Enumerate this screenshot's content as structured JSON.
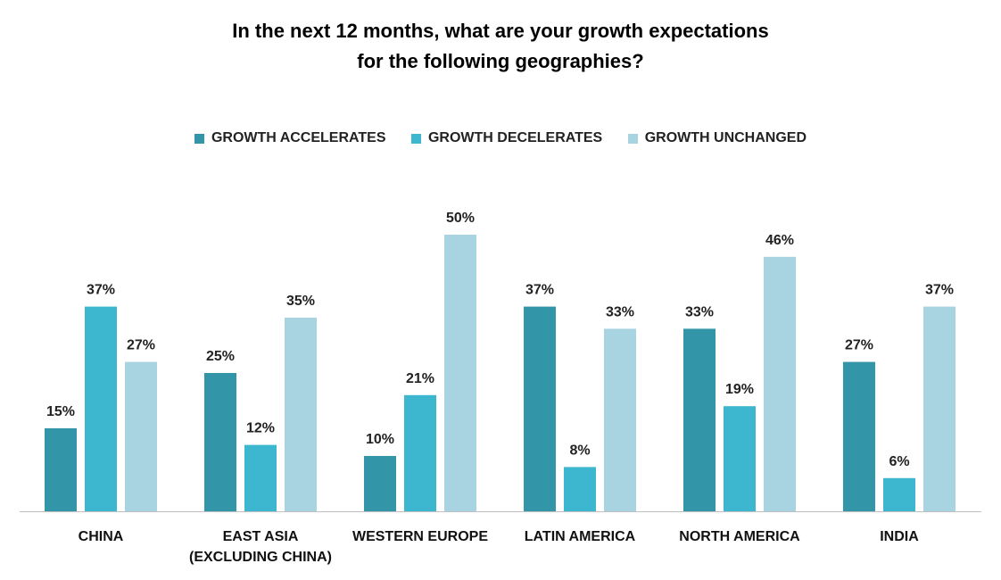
{
  "chart_data": {
    "type": "bar",
    "title_lines": [
      "In the next 12 months, what are your growth expectations",
      "for the following geographies?"
    ],
    "categories": [
      [
        "CHINA"
      ],
      [
        "EAST ASIA",
        "(EXCLUDING CHINA)"
      ],
      [
        "WESTERN EUROPE"
      ],
      [
        "LATIN AMERICA"
      ],
      [
        "NORTH AMERICA"
      ],
      [
        "INDIA"
      ]
    ],
    "series": [
      {
        "name": "GROWTH ACCELERATES",
        "color": "#3396A8",
        "values": [
          15,
          25,
          10,
          37,
          33,
          27
        ]
      },
      {
        "name": "GROWTH DECELERATES",
        "color": "#3CB7CF",
        "values": [
          37,
          12,
          21,
          8,
          19,
          6
        ]
      },
      {
        "name": "GROWTH UNCHANGED",
        "color": "#A8D4E2",
        "values": [
          27,
          35,
          50,
          33,
          46,
          37
        ]
      }
    ],
    "value_suffix": "%",
    "ylim": [
      0,
      50
    ],
    "legend_position": "top",
    "grid": false,
    "xlabel": "",
    "ylabel": ""
  }
}
